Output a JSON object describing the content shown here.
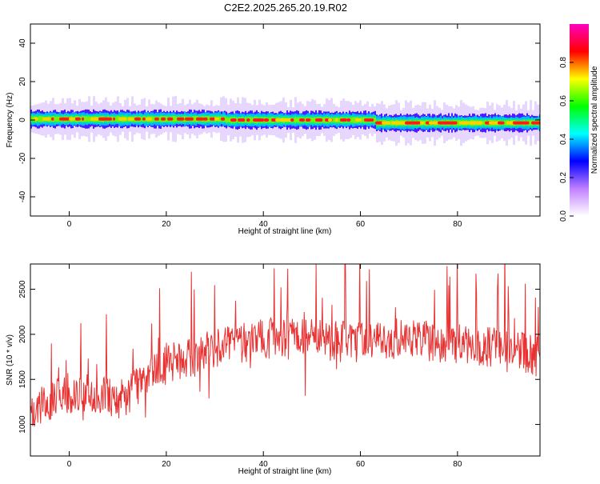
{
  "title": "C2E2.2025.265.20.19.R02",
  "colors": {
    "snr_line": "#e83232",
    "axis": "#000000",
    "background": "#ffffff"
  },
  "chart_data": [
    {
      "type": "heatmap",
      "name": "spectrogram",
      "xlabel": "Height of straight line (km)",
      "ylabel": "Frequency (Hz)",
      "xlim": [
        -8,
        97
      ],
      "ylim": [
        -50,
        50
      ],
      "xticks": [
        0,
        20,
        40,
        60,
        80
      ],
      "yticks": [
        -40,
        -20,
        0,
        20,
        40
      ],
      "ytick_labels": [
        "-40",
        "-20",
        "0",
        "20",
        "40"
      ],
      "xtick_labels": [
        "0",
        "20",
        "40",
        "60",
        "80"
      ],
      "ridge_frequency_segments": [
        {
          "x_start": -8,
          "x_end": 32,
          "freq_hz": 0.5
        },
        {
          "x_start": 32,
          "x_end": 63,
          "freq_hz": 0
        },
        {
          "x_start": 63,
          "x_end": 97,
          "freq_hz": -1.5
        }
      ],
      "ridge_halfwidth_hz": 3
    },
    {
      "type": "colorbar",
      "name": "colorbar",
      "label": "Normalized spectral amplitude",
      "range": [
        0,
        1
      ],
      "ticks": [
        0.0,
        0.2,
        0.4,
        0.6,
        0.8
      ],
      "tick_labels": [
        "0.0",
        "0.2",
        "0.4",
        "0.6",
        "0.8"
      ],
      "colormap": [
        "#ffffff",
        "#c080ff",
        "#0000ff",
        "#00ffff",
        "#00ff00",
        "#ffff00",
        "#ff0000",
        "#ff00c0"
      ]
    },
    {
      "type": "line",
      "name": "snr",
      "xlabel": "Height of straight line (km)",
      "ylabel": "SNR (10 * v/v)",
      "xlim": [
        -8,
        97
      ],
      "ylim": [
        650,
        2780
      ],
      "xticks": [
        0,
        20,
        40,
        60,
        80
      ],
      "xtick_labels": [
        "0",
        "20",
        "40",
        "60",
        "80"
      ],
      "yticks": [
        1000,
        1500,
        2000,
        2500
      ],
      "ytick_labels": [
        "1000",
        "1500",
        "2000",
        "2500"
      ],
      "trend_x": [
        -8,
        0,
        5,
        10,
        15,
        20,
        30,
        40,
        50,
        60,
        70,
        80,
        90,
        97
      ],
      "trend_y": [
        1150,
        1350,
        1350,
        1250,
        1450,
        1650,
        1850,
        1950,
        1950,
        1900,
        1950,
        1900,
        1850,
        1750
      ],
      "points": 900,
      "noise_amplitude": 230,
      "seed": 20196
    }
  ]
}
